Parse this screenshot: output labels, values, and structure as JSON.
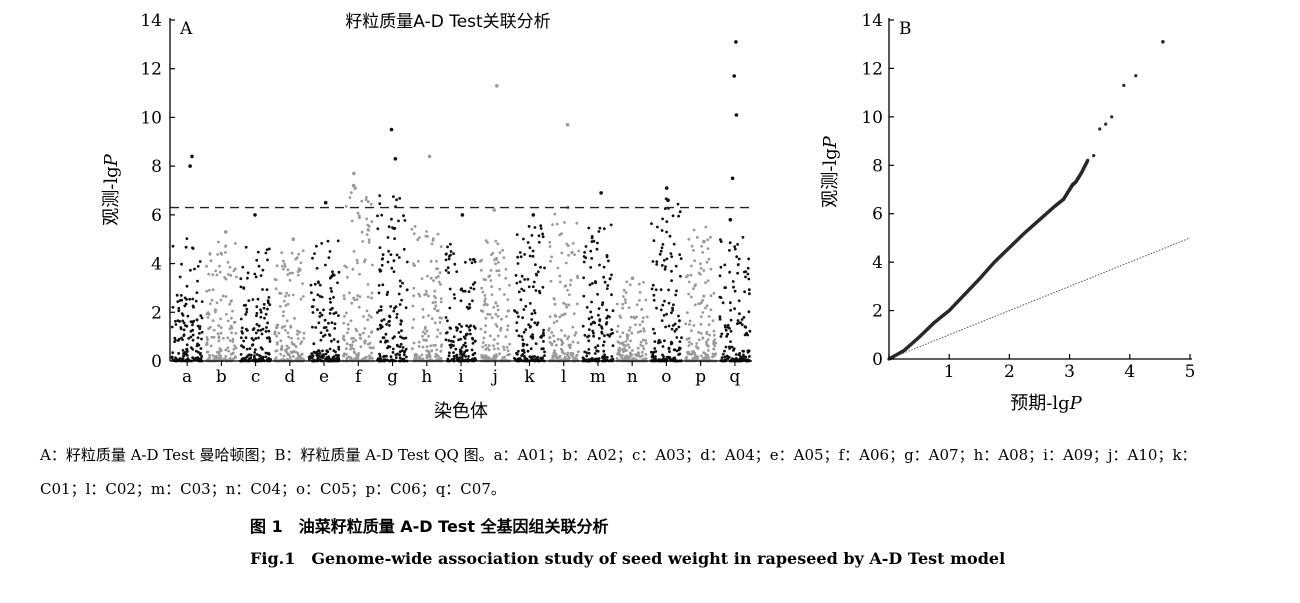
{
  "chart_data": [
    {
      "type": "scatter",
      "panel_label": "A",
      "title": "籽粒质量A-D Test关联分析",
      "xlabel": "染色体",
      "ylabel_prefix": "观测-lg",
      "ylabel_italic": "P",
      "ylim": [
        0,
        14
      ],
      "yticks": [
        0,
        2,
        4,
        6,
        8,
        10,
        12,
        14
      ],
      "threshold": 6.3,
      "grid": false,
      "series_colors": [
        "#111111",
        "#9a9a9a"
      ],
      "chromosomes": [
        {
          "label": "a",
          "max": 5.1,
          "peaks": [
            8.4,
            8.0
          ]
        },
        {
          "label": "b",
          "max": 5.0,
          "peaks": [
            5.3
          ]
        },
        {
          "label": "c",
          "max": 5.1,
          "peaks": [
            6.0
          ]
        },
        {
          "label": "d",
          "max": 5.0,
          "peaks": [
            5.0
          ]
        },
        {
          "label": "e",
          "max": 5.0,
          "peaks": [
            6.5
          ]
        },
        {
          "label": "f",
          "max": 7.2,
          "peaks": [
            7.2,
            7.1,
            7.7
          ]
        },
        {
          "label": "g",
          "max": 6.8,
          "peaks": [
            9.5,
            8.3
          ]
        },
        {
          "label": "h",
          "max": 5.6,
          "peaks": [
            8.4
          ]
        },
        {
          "label": "i",
          "max": 4.8,
          "peaks": [
            6.0
          ]
        },
        {
          "label": "j",
          "max": 5.0,
          "peaks": [
            11.3,
            6.2
          ]
        },
        {
          "label": "k",
          "max": 5.6,
          "peaks": [
            6.0
          ]
        },
        {
          "label": "l",
          "max": 6.1,
          "peaks": [
            9.7,
            6.3
          ]
        },
        {
          "label": "m",
          "max": 5.6,
          "peaks": [
            6.9
          ]
        },
        {
          "label": "n",
          "max": 3.4,
          "peaks": [
            3.4
          ]
        },
        {
          "label": "o",
          "max": 6.7,
          "peaks": [
            7.1,
            6.6
          ]
        },
        {
          "label": "p",
          "max": 5.7,
          "peaks": [
            4.9
          ]
        },
        {
          "label": "q",
          "max": 5.1,
          "peaks": [
            13.1,
            11.7,
            10.1,
            7.5,
            5.8
          ]
        }
      ]
    },
    {
      "type": "scatter",
      "panel_label": "B",
      "xlabel_prefix": "预期-lg",
      "xlabel_italic": "P",
      "ylabel_prefix": "观测-lg",
      "ylabel_italic": "P",
      "xlim": [
        0,
        5
      ],
      "ylim": [
        0,
        14
      ],
      "xticks": [
        0,
        1,
        2,
        3,
        4,
        5
      ],
      "yticks": [
        0,
        2,
        4,
        6,
        8,
        10,
        12,
        14
      ],
      "grid": false,
      "reference_line": {
        "from": [
          0,
          0
        ],
        "to": [
          5,
          5
        ]
      },
      "points": [
        [
          0.0,
          0.0
        ],
        [
          0.25,
          0.35
        ],
        [
          0.5,
          0.9
        ],
        [
          0.75,
          1.5
        ],
        [
          1.0,
          2.0
        ],
        [
          1.25,
          2.65
        ],
        [
          1.5,
          3.3
        ],
        [
          1.75,
          4.0
        ],
        [
          2.0,
          4.6
        ],
        [
          2.25,
          5.2
        ],
        [
          2.5,
          5.75
        ],
        [
          2.75,
          6.3
        ],
        [
          2.9,
          6.6
        ],
        [
          3.0,
          7.0
        ],
        [
          3.05,
          7.2
        ],
        [
          3.1,
          7.3
        ],
        [
          3.2,
          7.7
        ],
        [
          3.3,
          8.2
        ],
        [
          3.4,
          8.4
        ],
        [
          3.5,
          9.5
        ],
        [
          3.6,
          9.7
        ],
        [
          3.7,
          10.0
        ],
        [
          3.9,
          11.3
        ],
        [
          4.1,
          11.7
        ],
        [
          4.55,
          13.1
        ]
      ]
    }
  ],
  "caption": {
    "line1": "A：籽粒质量 A-D Test 曼哈顿图；B：籽粒质量 A-D Test QQ 图。a：A01；b：A02；c：A03；d：A04；e：A05；f：A06；g：A07；h：A08；i：A09；j：A10；k：",
    "line2": "C01；l：C02；m：C03；n：C04；o：C05；p：C06；q：C07。",
    "title_cn": "图 1　油菜籽粒质量 A-D Test 全基因组关联分析",
    "title_en": "Fig.1　Genome-wide association study of seed weight in rapeseed by A-D Test model"
  }
}
